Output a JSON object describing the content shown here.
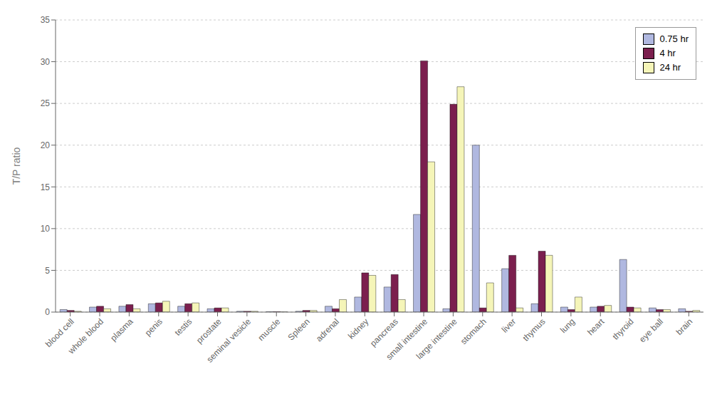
{
  "chart_data": {
    "type": "bar",
    "categories": [
      "blood cell",
      "whole blood",
      "plasma",
      "penis",
      "testis",
      "prostate",
      "seminal vesicle",
      "muscle",
      "Spleen",
      "adrenal",
      "kidney",
      "pancreas",
      "small intestine",
      "large intestine",
      "stomach",
      "liver",
      "thymus",
      "lung",
      "heart",
      "thyroid",
      "eye ball",
      "brain"
    ],
    "series": [
      {
        "name": "0.75 hr",
        "color": "#b0b8e0",
        "values": [
          0.3,
          0.6,
          0.7,
          1.0,
          0.7,
          0.4,
          0.1,
          0.05,
          0.1,
          0.7,
          1.8,
          3.0,
          11.7,
          0.4,
          20.0,
          5.2,
          1.0,
          0.6,
          0.6,
          6.3,
          0.5,
          0.4
        ]
      },
      {
        "name": "4 hr",
        "color": "#7b1f4e",
        "values": [
          0.2,
          0.7,
          0.9,
          1.1,
          1.0,
          0.5,
          0.1,
          0.05,
          0.2,
          0.4,
          4.7,
          4.5,
          30.1,
          24.9,
          0.5,
          6.8,
          7.3,
          0.3,
          0.7,
          0.6,
          0.3,
          0.1
        ]
      },
      {
        "name": "24 hr",
        "color": "#f5f5b8",
        "values": [
          0.1,
          0.4,
          0.4,
          1.3,
          1.1,
          0.5,
          0.1,
          0.02,
          0.2,
          1.5,
          4.4,
          1.5,
          18.0,
          27.0,
          3.5,
          0.5,
          6.8,
          1.8,
          0.8,
          0.5,
          0.3,
          0.2
        ]
      }
    ],
    "ylabel": "T/P ratio",
    "ylim": [
      0,
      35
    ],
    "yticks": [
      0,
      5,
      10,
      15,
      20,
      25,
      30,
      35
    ],
    "grid": true,
    "legend": "upper right"
  }
}
